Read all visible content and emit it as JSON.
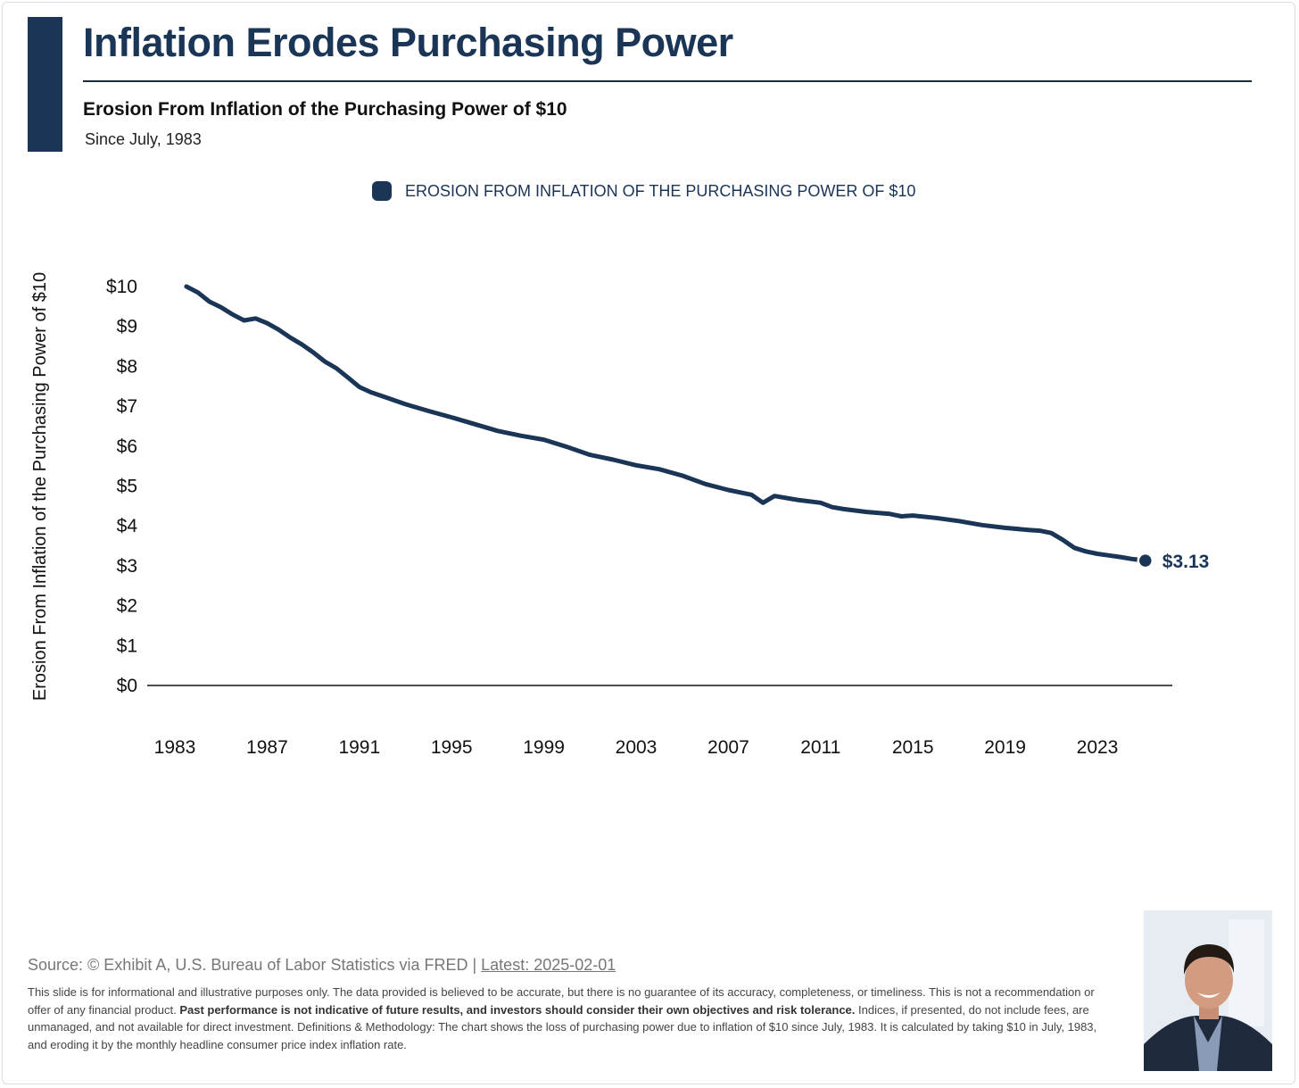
{
  "header": {
    "title": "Inflation Erodes Purchasing Power",
    "subtitle": "Erosion From Inflation of the Purchasing Power of $10",
    "since": "Since July, 1983"
  },
  "colors": {
    "brand": "#1b3557",
    "text": "#111111",
    "muted": "#777777"
  },
  "chart_data": {
    "type": "line",
    "legend": "EROSION FROM INFLATION OF THE PURCHASING POWER OF $10",
    "legend_placement": "top-center",
    "ylabel": "Erosion From Inflation of the Purchasing Power of $10",
    "xlabel": "",
    "ylim": [
      0,
      10
    ],
    "yticks": [
      "$0",
      "$1",
      "$2",
      "$3",
      "$4",
      "$5",
      "$6",
      "$7",
      "$8",
      "$9",
      "$10"
    ],
    "xticks": [
      "1983",
      "1987",
      "1991",
      "1995",
      "1999",
      "2003",
      "2007",
      "2011",
      "2015",
      "2019",
      "2023"
    ],
    "grid": false,
    "end_label": "$3.13",
    "series": [
      {
        "x": [
          1983.5,
          1984.0,
          1984.5,
          1985.0,
          1985.5,
          1986.0,
          1986.5,
          1987.0,
          1987.5,
          1988.0,
          1988.5,
          1989.0,
          1989.5,
          1990.0,
          1990.5,
          1991.0,
          1991.5,
          1992.0,
          1993.0,
          1994.0,
          1995.0,
          1996.0,
          1997.0,
          1998.0,
          1999.0,
          2000.0,
          2001.0,
          2002.0,
          2003.0,
          2004.0,
          2005.0,
          2006.0,
          2007.0,
          2008.0,
          2008.5,
          2009.0,
          2010.0,
          2011.0,
          2011.5,
          2012.0,
          2013.0,
          2014.0,
          2014.5,
          2015.0,
          2016.0,
          2017.0,
          2018.0,
          2019.0,
          2020.0,
          2020.5,
          2021.0,
          2021.5,
          2022.0,
          2022.5,
          2023.0,
          2023.5,
          2024.0,
          2024.5,
          2025.08
        ],
        "values": [
          10.0,
          9.85,
          9.62,
          9.48,
          9.3,
          9.15,
          9.2,
          9.08,
          8.92,
          8.72,
          8.55,
          8.35,
          8.12,
          7.95,
          7.72,
          7.48,
          7.35,
          7.25,
          7.05,
          6.88,
          6.72,
          6.55,
          6.38,
          6.26,
          6.16,
          5.98,
          5.78,
          5.66,
          5.52,
          5.42,
          5.26,
          5.05,
          4.9,
          4.78,
          4.58,
          4.75,
          4.65,
          4.58,
          4.47,
          4.42,
          4.35,
          4.3,
          4.24,
          4.26,
          4.2,
          4.12,
          4.02,
          3.95,
          3.9,
          3.88,
          3.82,
          3.65,
          3.45,
          3.36,
          3.3,
          3.26,
          3.22,
          3.17,
          3.13
        ]
      }
    ]
  },
  "footer": {
    "source_text": "Source: © Exhibit A, U.S. Bureau of Labor Statistics via FRED | ",
    "latest": "Latest: 2025-02-01",
    "disclaimer_a": "This slide is for informational and illustrative purposes only. The data provided is believed to be accurate, but there is no guarantee of its accuracy, completeness, or timeliness. This is not a recommendation or offer of any financial product. ",
    "disclaimer_bold": "Past performance is not indicative of future results, and investors should consider their own objectives and risk tolerance.",
    "disclaimer_b": " Indices, if presented, do not include fees, are unmanaged, and not available for direct investment. Definitions & Methodology: The chart shows the loss of purchasing power due to inflation of $10 since July, 1983. It is calculated by taking $10 in July, 1983, and eroding it by the monthly headline consumer price index inflation rate."
  }
}
